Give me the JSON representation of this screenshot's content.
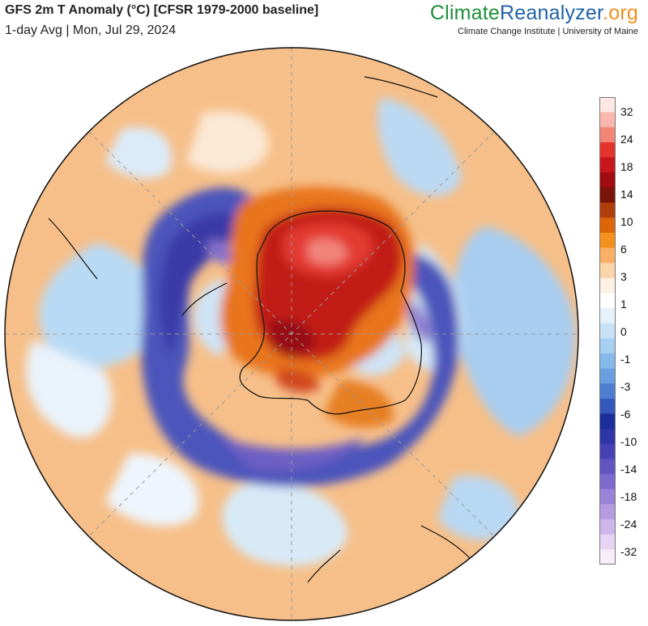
{
  "header": {
    "title": "GFS 2m T Anomaly (°C) [CFSR 1979-2000 baseline]",
    "subtitle": "1-day Avg | Mon, Jul 29, 2024"
  },
  "brand": {
    "part1": "Climate",
    "part2": "Reanalyzer",
    "part3": ".org",
    "credit": "Climate Change Institute | University of Maine",
    "colors": {
      "climate": "#1f8f3a",
      "reanalyzer": "#1f62a8",
      "org": "#f0901e"
    }
  },
  "map": {
    "projection": "south-polar orthographic",
    "variable": "2m temperature anomaly"
  },
  "legend": {
    "labels": [
      "32",
      "24",
      "18",
      "14",
      "10",
      "6",
      "3",
      "1",
      "0",
      "-1",
      "-3",
      "-6",
      "-10",
      "-14",
      "-18",
      "-24",
      "-32"
    ],
    "colors": [
      "#fde8e6",
      "#f9b7ae",
      "#f38576",
      "#e3352c",
      "#c8161c",
      "#a00c10",
      "#7a1408",
      "#b13e0d",
      "#dc6409",
      "#f4911e",
      "#f8b066",
      "#fcd4a9",
      "#fef0e2",
      "#ffffff",
      "#e5f2fc",
      "#c7e2f7",
      "#a6d0f1",
      "#86baea",
      "#6a9fdf",
      "#4d7ed0",
      "#3558bc",
      "#1c2e99",
      "#2e35a6",
      "#4642b4",
      "#6255c2",
      "#7e6acc",
      "#9a82d6",
      "#b69be0",
      "#cfb6ea",
      "#e7d3f3",
      "#f7ecf9"
    ]
  }
}
